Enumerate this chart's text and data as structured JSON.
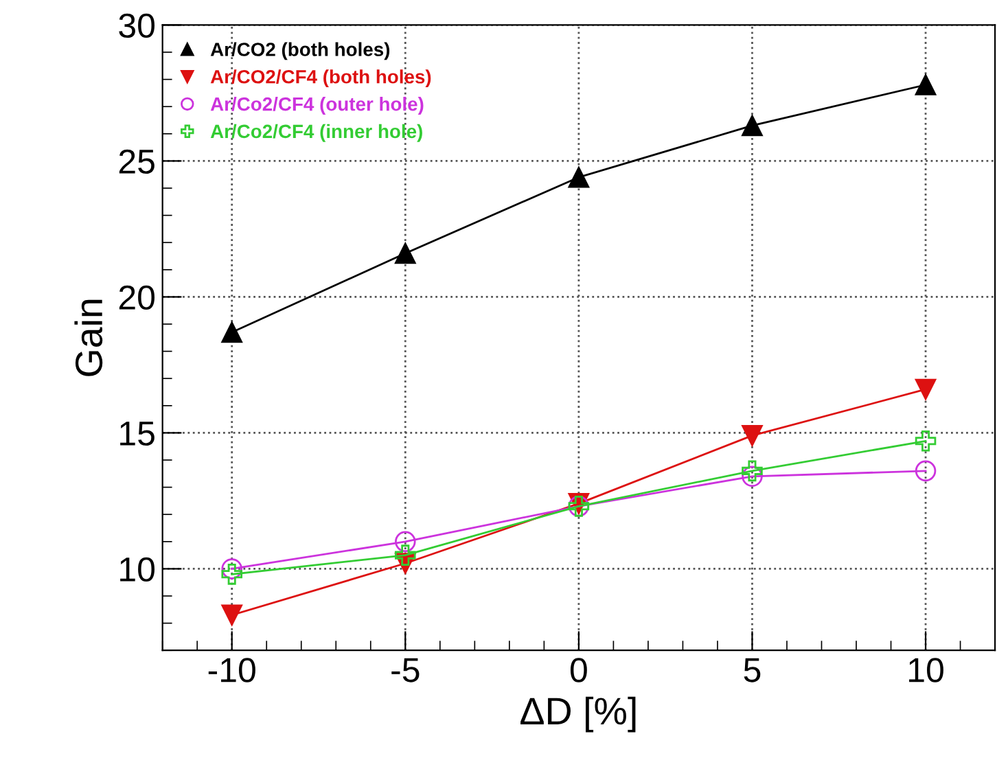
{
  "chart_data": {
    "type": "line",
    "xlabel": "ΔD [%]",
    "ylabel": "Gain",
    "x": [
      -10,
      -5,
      0,
      5,
      10
    ],
    "series": [
      {
        "name": "Ar/CO2 (both holes)",
        "color": "#000000",
        "marker": "triangle",
        "values": [
          18.7,
          21.6,
          24.4,
          26.3,
          27.8
        ]
      },
      {
        "name": "Ar/CO2/CF4 (both holes)",
        "color": "#dd1111",
        "marker": "triangle_down",
        "values": [
          8.3,
          10.2,
          12.4,
          14.9,
          16.6
        ]
      },
      {
        "name": "Ar/Co2/CF4 (outer hole)",
        "color": "#cc33dd",
        "marker": "circle",
        "values": [
          10.0,
          11.0,
          12.3,
          13.4,
          13.6
        ]
      },
      {
        "name": "Ar/Co2/CF4 (inner hole)",
        "color": "#33cc33",
        "marker": "cross",
        "values": [
          9.8,
          10.5,
          12.3,
          13.6,
          14.7
        ]
      }
    ],
    "xlim": [
      -12,
      12
    ],
    "ylim": [
      7,
      30
    ],
    "xticks": [
      -10,
      -5,
      0,
      5,
      10
    ],
    "yticks": [
      10,
      15,
      20,
      25,
      30
    ],
    "grid": true,
    "legend": "top left"
  }
}
